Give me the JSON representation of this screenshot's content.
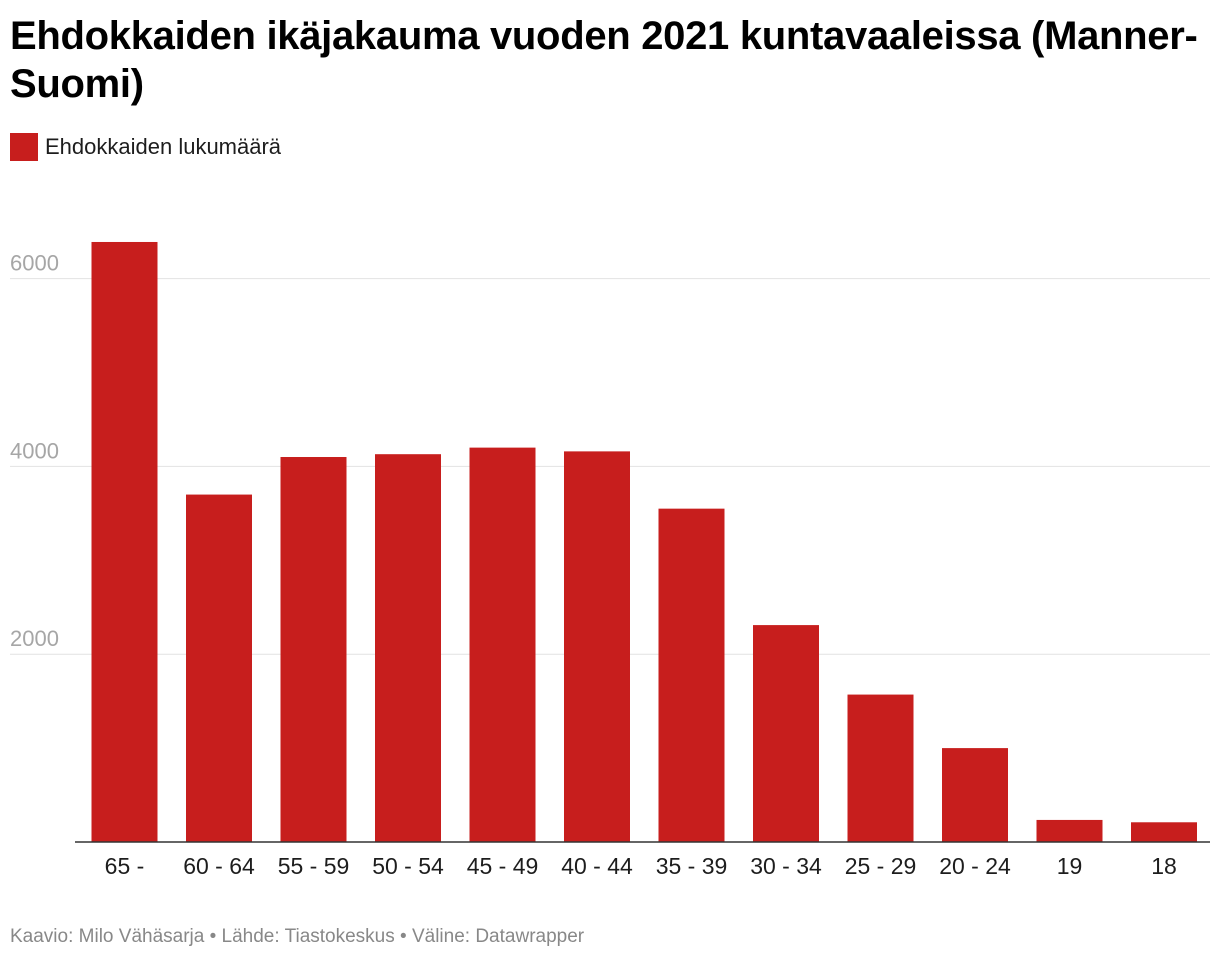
{
  "chart_data": {
    "type": "bar",
    "title": "Ehdokkaiden ikäjakauma vuoden 2021 kuntavaaleissa (Manner-Suomi)",
    "legend": [
      {
        "label": "Ehdokkaiden lukumäärä",
        "color": "#c71e1d"
      }
    ],
    "categories": [
      "65 -",
      "60 - 64",
      "55 - 59",
      "50 - 54",
      "45 - 49",
      "40 - 44",
      "35 - 39",
      "30 - 34",
      "25 - 29",
      "20 - 24",
      "19",
      "18"
    ],
    "series": [
      {
        "name": "Ehdokkaiden lukumäärä",
        "values": [
          6390,
          3700,
          4100,
          4130,
          4200,
          4160,
          3550,
          2310,
          1570,
          1000,
          235,
          210
        ]
      }
    ],
    "yticks": [
      2000,
      4000,
      6000
    ],
    "ylim": [
      0,
      6400
    ],
    "grid": true,
    "xlabel": "",
    "ylabel": ""
  },
  "footer": {
    "text": "Kaavio: Milo Vähäsarja • Lähde: Tiastokeskus • Väline: Datawrapper"
  },
  "colors": {
    "bar": "#c71e1d",
    "grid": "#e2e2e2",
    "axis": "#333333"
  }
}
